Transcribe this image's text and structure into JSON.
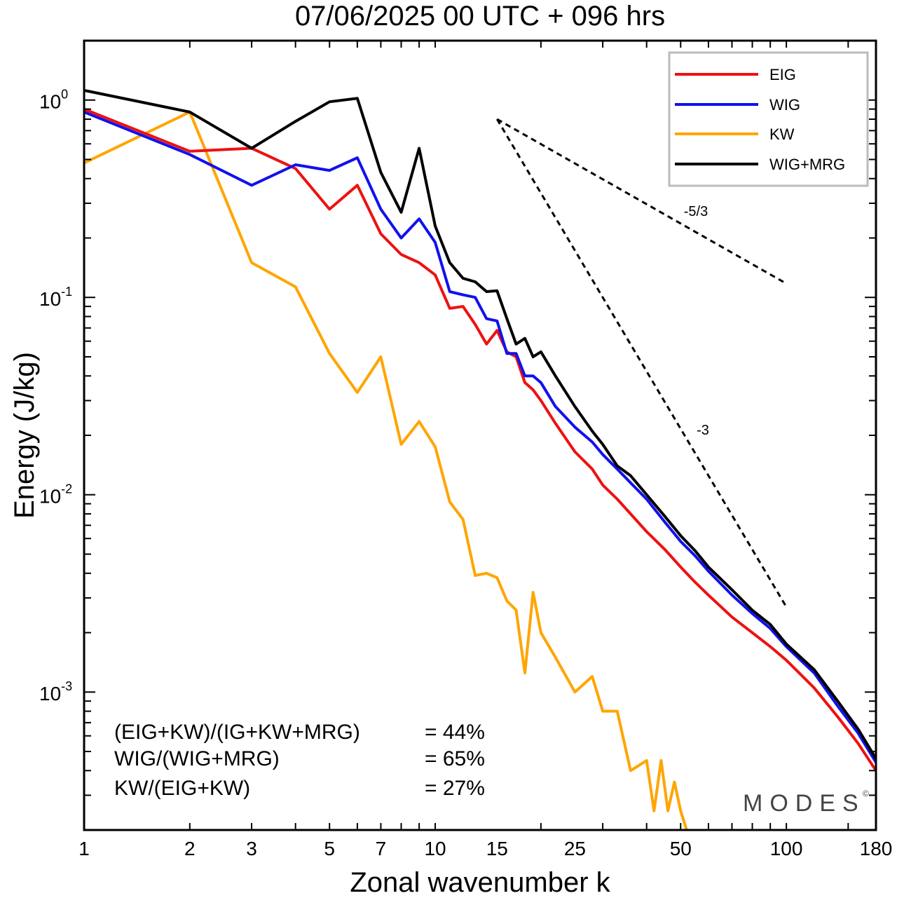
{
  "chart_data": {
    "type": "line",
    "title": "07/06/2025  00 UTC  + 096 hrs",
    "xlabel": "Zonal wavenumber k",
    "ylabel": "Energy (J/kg)",
    "xscale": "log",
    "yscale": "log",
    "xlim": [
      1,
      180
    ],
    "ylim": [
      0.0002,
      2.0
    ],
    "xticks": [
      1,
      2,
      3,
      5,
      7,
      10,
      15,
      25,
      50,
      100,
      180
    ],
    "xtick_labels": [
      "1",
      "2",
      "3",
      "5",
      "7",
      "10",
      "15",
      "25",
      "50",
      "100",
      "180"
    ],
    "yticks": [
      {
        "value": 1,
        "base": "10",
        "exp": "0"
      },
      {
        "value": 0.1,
        "base": "10",
        "exp": "-1"
      },
      {
        "value": 0.01,
        "base": "10",
        "exp": "-2"
      },
      {
        "value": 0.001,
        "base": "10",
        "exp": "-3"
      }
    ],
    "legend_position": "top-right",
    "series": [
      {
        "name": "EIG",
        "color": "#ee1111",
        "x": [
          1,
          2,
          3,
          4,
          5,
          6,
          7,
          8,
          9,
          10,
          11,
          12,
          13,
          14,
          15,
          16,
          17,
          18,
          19,
          20,
          22,
          25,
          28,
          30,
          33,
          36,
          40,
          45,
          50,
          55,
          60,
          70,
          80,
          90,
          100,
          120,
          140,
          160,
          180
        ],
        "y": [
          0.9,
          0.55,
          0.57,
          0.45,
          0.28,
          0.37,
          0.21,
          0.165,
          0.15,
          0.13,
          0.088,
          0.09,
          0.073,
          0.058,
          0.068,
          0.053,
          0.05,
          0.037,
          0.034,
          0.03,
          0.023,
          0.0165,
          0.0135,
          0.0112,
          0.0095,
          0.008,
          0.0065,
          0.0053,
          0.0043,
          0.0036,
          0.0031,
          0.0024,
          0.002,
          0.0017,
          0.00145,
          0.00105,
          0.00075,
          0.00055,
          0.0004
        ]
      },
      {
        "name": "WIG",
        "color": "#1111ee",
        "x": [
          1,
          2,
          3,
          4,
          5,
          6,
          7,
          8,
          9,
          10,
          11,
          12,
          13,
          14,
          15,
          16,
          17,
          18,
          19,
          20,
          22,
          25,
          28,
          30,
          33,
          36,
          40,
          45,
          50,
          55,
          60,
          70,
          80,
          90,
          100,
          120,
          140,
          160,
          180
        ],
        "y": [
          0.87,
          0.53,
          0.37,
          0.47,
          0.44,
          0.51,
          0.28,
          0.2,
          0.25,
          0.19,
          0.107,
          0.103,
          0.1,
          0.078,
          0.076,
          0.052,
          0.052,
          0.04,
          0.04,
          0.037,
          0.028,
          0.022,
          0.0185,
          0.016,
          0.0135,
          0.0115,
          0.0095,
          0.0073,
          0.0058,
          0.0049,
          0.0041,
          0.0031,
          0.0025,
          0.0021,
          0.0017,
          0.00125,
          0.00085,
          0.00062,
          0.00044
        ]
      },
      {
        "name": "KW",
        "color": "#ffa500",
        "x": [
          1,
          2,
          3,
          4,
          5,
          6,
          7,
          8,
          9,
          10,
          11,
          12,
          13,
          14,
          15,
          16,
          17,
          18,
          19,
          20,
          22,
          25,
          28,
          30,
          33,
          36,
          40,
          42,
          44,
          46,
          48,
          50,
          52
        ],
        "y": [
          0.48,
          0.87,
          0.15,
          0.113,
          0.052,
          0.033,
          0.05,
          0.018,
          0.0235,
          0.0175,
          0.0092,
          0.0075,
          0.0039,
          0.004,
          0.0038,
          0.0029,
          0.0026,
          0.00125,
          0.0032,
          0.002,
          0.0015,
          0.001,
          0.0012,
          0.0008,
          0.0008,
          0.0004,
          0.00045,
          0.00025,
          0.00045,
          0.00025,
          0.00035,
          0.00025,
          0.0002
        ]
      },
      {
        "name": "WIG+MRG",
        "color": "#000000",
        "x": [
          1,
          2,
          3,
          4,
          5,
          6,
          7,
          8,
          9,
          10,
          11,
          12,
          13,
          14,
          15,
          16,
          17,
          18,
          19,
          20,
          22,
          25,
          28,
          30,
          33,
          36,
          40,
          45,
          50,
          55,
          60,
          70,
          80,
          90,
          100,
          120,
          140,
          160,
          180
        ],
        "y": [
          1.12,
          0.87,
          0.57,
          0.78,
          0.98,
          1.02,
          0.43,
          0.27,
          0.57,
          0.23,
          0.15,
          0.125,
          0.12,
          0.107,
          0.108,
          0.078,
          0.058,
          0.062,
          0.05,
          0.053,
          0.04,
          0.028,
          0.021,
          0.018,
          0.014,
          0.0125,
          0.01,
          0.0078,
          0.0062,
          0.0052,
          0.0043,
          0.0033,
          0.0026,
          0.0022,
          0.00175,
          0.0013,
          0.0009,
          0.00065,
          0.00046
        ]
      }
    ],
    "reference_slopes": [
      {
        "label": "-5/3",
        "x": [
          15,
          100
        ],
        "y": [
          0.8,
          0.1175
        ]
      },
      {
        "label": "-3",
        "x": [
          15,
          100
        ],
        "y": [
          0.8,
          0.0027
        ]
      }
    ],
    "annotations": [
      {
        "text": "(EIG+KW)/(IG+KW+MRG)",
        "value": "= 44%"
      },
      {
        "text": "WIG/(WIG+MRG)",
        "value": "= 65%"
      },
      {
        "text": "KW/(EIG+KW)",
        "value": "= 27%"
      }
    ],
    "watermark": "MODES",
    "watermark_mark": "©"
  }
}
